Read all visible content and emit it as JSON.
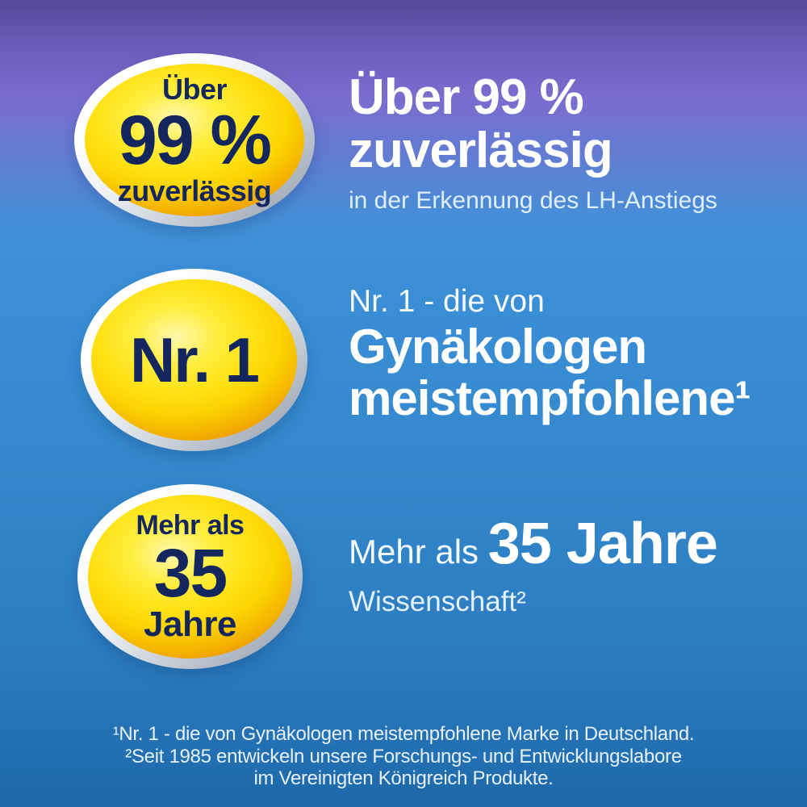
{
  "badges": [
    {
      "top": "Über",
      "big": "99 %",
      "bottom": "zuverlässig"
    },
    {
      "big": "Nr. 1"
    },
    {
      "top": "Mehr als",
      "big": "35",
      "bottom": "Jahre"
    }
  ],
  "claims": [
    {
      "heading_line1": "Über 99 %",
      "heading_line2": "zuverlässig",
      "subtext": "in der Erkennung des LH-Anstiegs"
    },
    {
      "intro": "Nr. 1 - die von",
      "heading_line1": "Gynäkologen",
      "heading_line2": "meistempfohlene¹"
    },
    {
      "intro": "Mehr als ",
      "highlight": "35 Jahre",
      "subtext": "Wissenschaft²"
    }
  ],
  "footnotes": {
    "line1": "¹Nr. 1 - die von Gynäkologen meistempfohlene Marke in Deutschland.",
    "line2": "²Seit 1985 entwickeln unsere Forschungs- und Entwicklungslabore",
    "line3": "im Vereinigten Königreich Produkte."
  },
  "colors": {
    "background_top_purple": "#56499b",
    "background_mid_purple": "#7b6ccf",
    "background_blue": "#3a8fd7",
    "background_bottom_blue": "#1d68a9",
    "badge_yellow": "#ffe215",
    "badge_yellow_rim_orange": "#efa000",
    "badge_ring_silver": "#97a0ae",
    "badge_text_navy": "#14265e",
    "heading_white": "#ffffff",
    "subtext_pale_blue": "#dff0fd"
  }
}
